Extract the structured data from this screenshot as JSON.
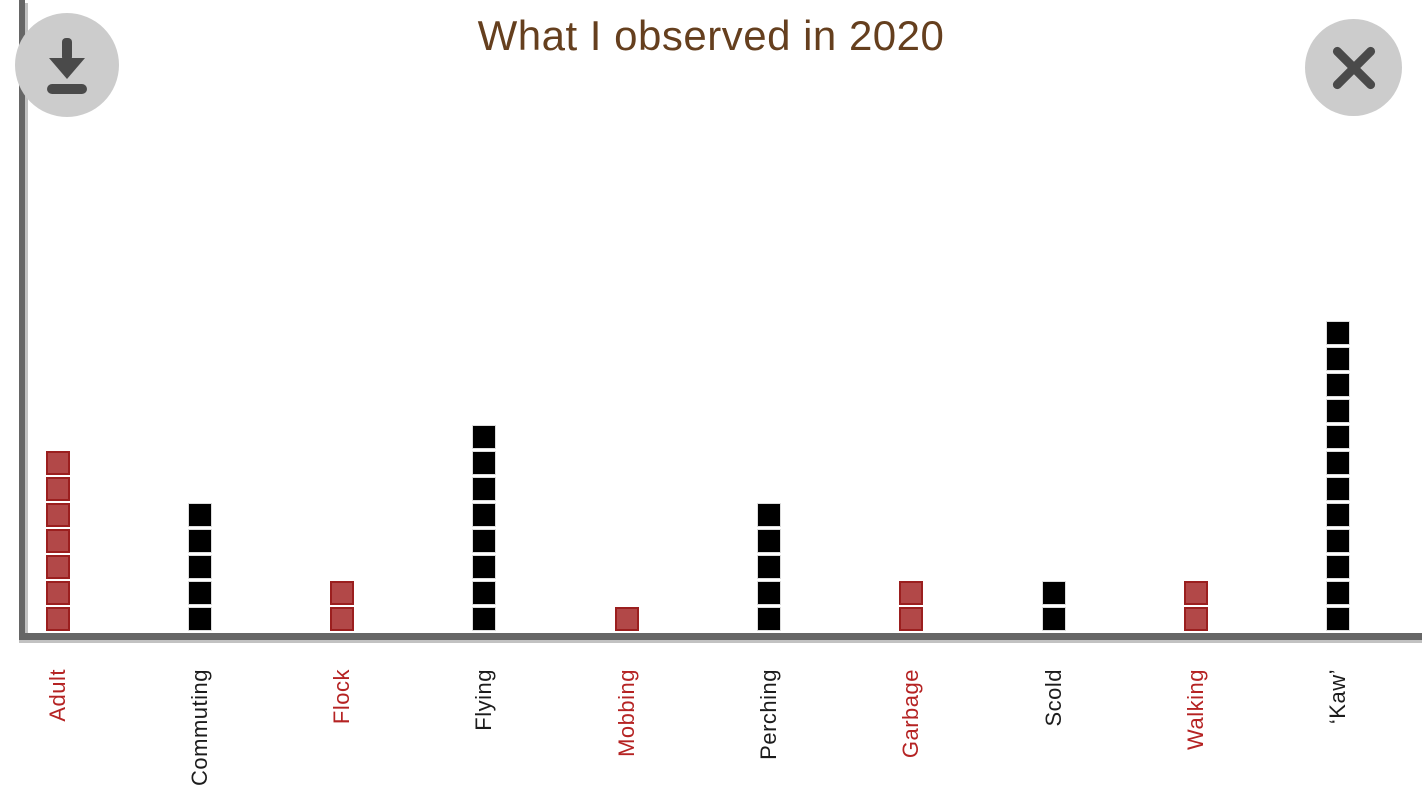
{
  "header": {
    "title": "What I observed in 2020"
  },
  "controls": {
    "download_button": "download-icon",
    "close_button": "close-icon"
  },
  "chart_data": {
    "type": "bar",
    "subtype": "unit-square-stacks",
    "title": "What I observed in 2020",
    "xlabel": "",
    "ylabel": "",
    "ylim": [
      0,
      12
    ],
    "grid": false,
    "legend": false,
    "categories": [
      "Adult",
      "Commuting",
      "Flock",
      "Flying",
      "Mobbing",
      "Perching",
      "Garbage",
      "Scold",
      "Walking",
      "‘Kaw’"
    ],
    "values": [
      7,
      5,
      2,
      8,
      1,
      5,
      2,
      2,
      2,
      12
    ],
    "unit_colors": [
      "red",
      "black",
      "red",
      "black",
      "red",
      "black",
      "red",
      "black",
      "red",
      "black"
    ],
    "colors": {
      "title": "#653f1e",
      "axis": "#666666",
      "axis_shadow": "#c2c2c2",
      "red_fill": "#b24848",
      "red_border": "#9b1f1f",
      "black_fill": "#000000",
      "black_border": "#dcdcdc",
      "red_label": "#b52323",
      "black_label": "#1c1c1c",
      "button_bg": "#cccccc",
      "button_glyph": "#4a4a4a"
    }
  }
}
